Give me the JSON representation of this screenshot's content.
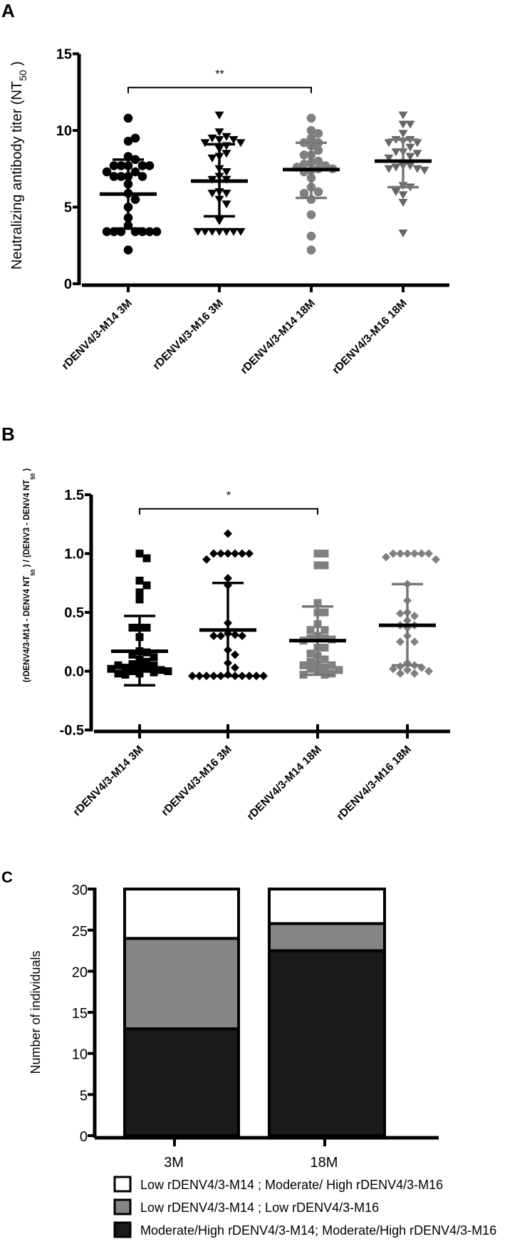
{
  "figure": {
    "panels": [
      "A",
      "B",
      "C"
    ]
  },
  "chart_data": [
    {
      "panel": "A",
      "type": "scatter",
      "title": "",
      "xlabel": "",
      "ylabel": "Neutralizing antibody titer (NT50)",
      "ylabel_main": "Neutralizing antibody titer (NT",
      "ylabel_sub": "50",
      "ylabel_close": " )",
      "ylim": [
        0,
        15
      ],
      "yticks": [
        0,
        5,
        10,
        15
      ],
      "grid": false,
      "categories": [
        "rDENV4/3-M14 3M",
        "rDENV4/3-M16 3M",
        "rDENV4/3-M14 18M",
        "rDENV4/3-M16 18M"
      ],
      "significance": [
        {
          "from": 0,
          "to": 2,
          "label": "**",
          "y": 12.8
        }
      ],
      "series": [
        {
          "name": "rDENV4/3-M14 3M",
          "marker": "circle",
          "color": "#000000",
          "mean": 5.85,
          "sd_low": 3.6,
          "sd_high": 8.1,
          "values": [
            10.8,
            9.3,
            9.5,
            8.3,
            8.1,
            7.7,
            7.7,
            7.7,
            7.7,
            7.7,
            7.3,
            7.3,
            7.0,
            7.0,
            7.0,
            7.0,
            6.5,
            5.9,
            5.5,
            5.0,
            4.3,
            3.8,
            3.4,
            3.4,
            3.4,
            3.4,
            3.4,
            3.4,
            3.4,
            2.2
          ]
        },
        {
          "name": "rDENV4/3-M16 3M",
          "marker": "triangle-down",
          "color": "#000000",
          "mean": 6.7,
          "sd_low": 4.4,
          "sd_high": 9.1,
          "values": [
            11.0,
            9.9,
            9.6,
            9.5,
            9.4,
            9.4,
            9.2,
            9.2,
            9.0,
            8.8,
            8.5,
            8.3,
            8.2,
            7.5,
            7.3,
            7.0,
            6.8,
            6.8,
            6.0,
            5.9,
            5.9,
            5.5,
            5.2,
            4.1,
            3.4,
            3.4,
            3.4,
            3.4,
            3.4,
            3.4,
            3.4
          ]
        },
        {
          "name": "rDENV4/3-M14 18M",
          "marker": "circle",
          "color": "#808080",
          "mean": 7.45,
          "sd_low": 5.6,
          "sd_high": 9.2,
          "values": [
            10.8,
            10.0,
            9.8,
            9.5,
            9.2,
            9.2,
            9.0,
            8.7,
            8.4,
            8.4,
            8.0,
            7.9,
            7.8,
            7.7,
            7.6,
            7.5,
            7.5,
            7.4,
            7.3,
            6.9,
            6.3,
            6.0,
            5.9,
            5.5,
            4.5,
            3.1,
            2.2
          ]
        },
        {
          "name": "rDENV4/3-M16 18M",
          "marker": "triangle-down",
          "color": "#666666",
          "mean": 8.0,
          "sd_low": 6.3,
          "sd_high": 9.4,
          "values": [
            11.0,
            10.4,
            10.4,
            9.8,
            9.4,
            9.4,
            9.3,
            9.2,
            9.2,
            8.9,
            8.6,
            8.6,
            8.5,
            8.3,
            8.2,
            7.7,
            7.7,
            7.6,
            7.5,
            7.5,
            7.4,
            6.4,
            6.3,
            6.0,
            5.8,
            5.3,
            3.3
          ]
        }
      ]
    },
    {
      "panel": "B",
      "type": "scatter",
      "title": "",
      "xlabel": "",
      "ylabel": "(rDENV4/3-M14 - DENV4 NT50) / (DENV3 - DENV4 NT50)",
      "ylabel_part1": "(rDENV4/3-M14 - DENV4 NT",
      "ylabel_sub1": "50",
      "ylabel_part2": " ) / (DENV3 - DENV4 NT",
      "ylabel_sub2": "50",
      "ylabel_part3": " )",
      "ylim": [
        -0.5,
        1.5
      ],
      "yticks": [
        -0.5,
        0.0,
        0.5,
        1.0,
        1.5
      ],
      "ytick_labels": [
        "-0.5",
        "0.0",
        "0.5",
        "1.0",
        "1.5"
      ],
      "grid": false,
      "categories": [
        "rDENV4/3-M14 3M",
        "rDENV4/3-M16 3M",
        "rDENV4/3-M14 18M",
        "rDENV4/3-M16 18M"
      ],
      "significance": [
        {
          "from": 0,
          "to": 2,
          "label": "*",
          "y": 1.38
        }
      ],
      "series": [
        {
          "name": "rDENV4/3-M14 3M",
          "marker": "square",
          "color": "#000000",
          "mean": 0.17,
          "sd_low": -0.12,
          "sd_high": 0.47,
          "values": [
            1.0,
            0.96,
            0.77,
            0.73,
            0.67,
            0.61,
            0.37,
            0.37,
            0.37,
            0.29,
            0.17,
            0.16,
            0.14,
            0.12,
            0.1,
            0.08,
            0.06,
            0.05,
            0.04,
            0.03,
            0.02,
            0.01,
            0.0,
            -0.01,
            -0.02,
            -0.02,
            -0.03,
            0.0,
            0.02,
            0.05
          ]
        },
        {
          "name": "rDENV4/3-M16 3M",
          "marker": "diamond",
          "color": "#000000",
          "mean": 0.35,
          "sd_low": -0.04,
          "sd_high": 0.75,
          "values": [
            1.17,
            1.0,
            1.0,
            1.0,
            1.0,
            1.0,
            1.0,
            0.95,
            0.79,
            0.73,
            0.41,
            0.32,
            0.31,
            0.3,
            0.3,
            0.3,
            0.18,
            0.14,
            0.07,
            0.03,
            -0.03,
            -0.04,
            -0.04,
            -0.04,
            -0.04,
            -0.04,
            -0.04,
            -0.04,
            -0.04,
            -0.04,
            -0.04
          ]
        },
        {
          "name": "rDENV4/3-M14 18M",
          "marker": "square",
          "color": "#808080",
          "mean": 0.26,
          "sd_low": -0.03,
          "sd_high": 0.55,
          "values": [
            1.0,
            1.0,
            0.9,
            0.9,
            0.58,
            0.5,
            0.5,
            0.4,
            0.35,
            0.35,
            0.3,
            0.28,
            0.28,
            0.27,
            0.26,
            0.2,
            0.2,
            0.15,
            0.13,
            0.1,
            0.08,
            0.06,
            0.05,
            0.05,
            0.03,
            0.02,
            0.01,
            0.0,
            -0.02,
            -0.03,
            -0.03
          ]
        },
        {
          "name": "rDENV4/3-M16 18M",
          "marker": "diamond",
          "color": "#808080",
          "mean": 0.39,
          "sd_low": 0.05,
          "sd_high": 0.74,
          "values": [
            1.0,
            1.0,
            1.0,
            1.0,
            1.0,
            1.0,
            0.97,
            0.95,
            0.74,
            0.6,
            0.5,
            0.47,
            0.49,
            0.43,
            0.39,
            0.39,
            0.37,
            0.3,
            0.25,
            0.25,
            0.07,
            0.05,
            0.04,
            0.03,
            0.02,
            0.01,
            0.0,
            -0.02,
            -0.02
          ]
        }
      ]
    },
    {
      "panel": "C",
      "type": "bar",
      "stacked": true,
      "title": "",
      "xlabel": "",
      "ylabel": "Number of individuals",
      "ylim": [
        0,
        30
      ],
      "yticks": [
        0,
        5,
        10,
        15,
        20,
        25,
        30
      ],
      "grid": false,
      "legend_position": "bottom",
      "categories": [
        "3M",
        "18M"
      ],
      "series": [
        {
          "name": "Moderate/High rDENV4/3-M14; Moderate/High rDENV4/3-M16",
          "color": "#1a1a1a",
          "values": [
            13,
            22.5
          ]
        },
        {
          "name": "Low rDENV4/3-M14 ; Low rDENV4/3-M16",
          "color": "#858585",
          "values": [
            11,
            3.3
          ]
        },
        {
          "name": "Low rDENV4/3-M14 ; Moderate/ High rDENV4/3-M16",
          "color": "#ffffff",
          "values": [
            6,
            4.2
          ]
        }
      ],
      "legend": [
        {
          "label": "Low rDENV4/3-M14 ; Moderate/ High rDENV4/3-M16",
          "color": "#ffffff"
        },
        {
          "label": "Low rDENV4/3-M14 ; Low rDENV4/3-M16",
          "color": "#858585"
        },
        {
          "label": "Moderate/High rDENV4/3-M14; Moderate/High rDENV4/3-M16",
          "color": "#1a1a1a"
        }
      ]
    }
  ]
}
